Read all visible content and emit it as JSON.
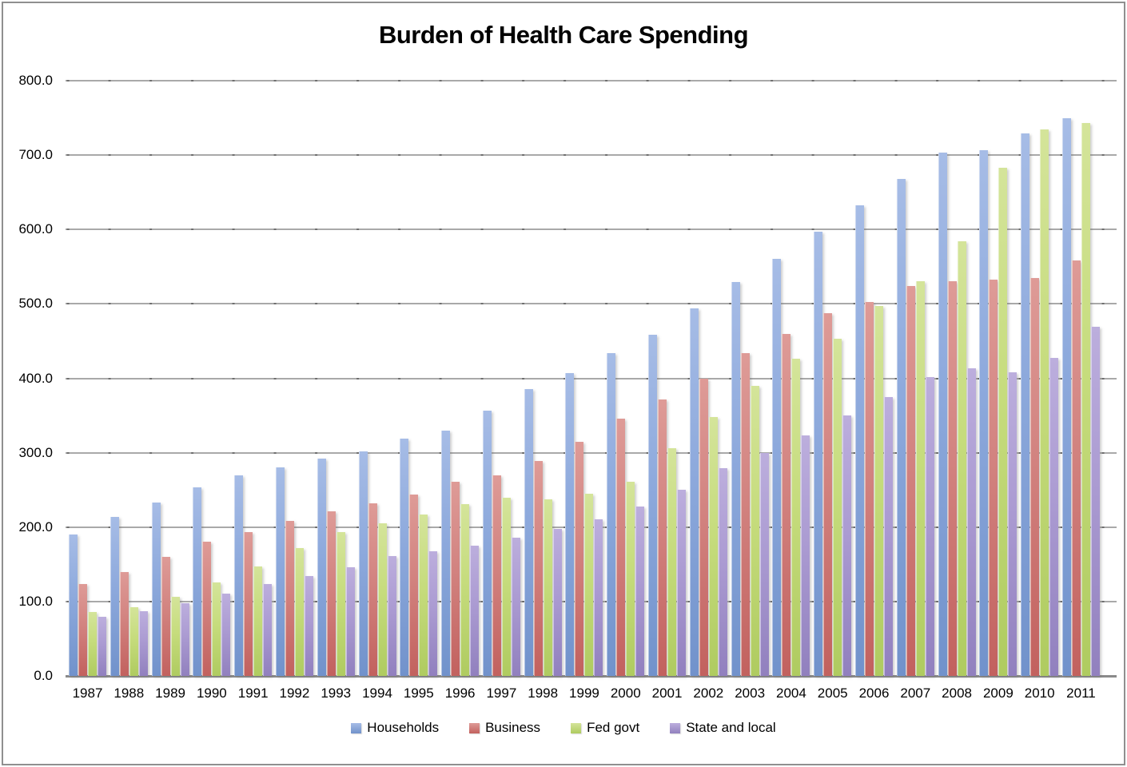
{
  "title": "Burden of Health Care Spending",
  "chart_data": {
    "type": "bar",
    "title": "Burden of Health Care Spending",
    "xlabel": "",
    "ylabel": "",
    "ylim": [
      0,
      800
    ],
    "ytick_step": 100,
    "ytick_labels": [
      "0.0",
      "100.0",
      "200.0",
      "300.0",
      "400.0",
      "500.0",
      "600.0",
      "700.0",
      "800.0"
    ],
    "grid": "horizontal gridlines on, dashed tick marks at category boundaries",
    "legend_position": "bottom",
    "categories": [
      1987,
      1988,
      1989,
      1990,
      1991,
      1992,
      1993,
      1994,
      1995,
      1996,
      1997,
      1998,
      1999,
      2000,
      2001,
      2002,
      2003,
      2004,
      2005,
      2006,
      2007,
      2008,
      2009,
      2010,
      2011
    ],
    "series": [
      {
        "name": "Households",
        "color": "#8da9dc",
        "color_top": "#a6bce6",
        "color_bottom": "#7192cb",
        "values": [
          190,
          214,
          233,
          253,
          269,
          280,
          292,
          302,
          319,
          330,
          356,
          385,
          407,
          434,
          458,
          494,
          529,
          561,
          597,
          633,
          668,
          703,
          707,
          729,
          749
        ]
      },
      {
        "name": "Business",
        "color": "#d28380",
        "color_top": "#de9b97",
        "color_bottom": "#c2615e",
        "values": [
          123,
          140,
          160,
          180,
          193,
          208,
          221,
          232,
          244,
          261,
          269,
          289,
          315,
          346,
          372,
          400,
          434,
          460,
          488,
          503,
          524,
          530,
          533,
          535,
          558
        ]
      },
      {
        "name": "Fed govt",
        "color": "#c6dc7d",
        "color_top": "#d4e49a",
        "color_bottom": "#afcb60",
        "values": [
          86,
          92,
          106,
          126,
          147,
          172,
          193,
          205,
          217,
          231,
          239,
          237,
          245,
          261,
          306,
          348,
          390,
          426,
          453,
          497,
          530,
          584,
          683,
          734,
          743
        ]
      },
      {
        "name": "State and local",
        "color": "#ab9bd2",
        "color_top": "#bcaedd",
        "color_bottom": "#9180be",
        "values": [
          79,
          87,
          98,
          111,
          124,
          134,
          146,
          161,
          168,
          175,
          186,
          198,
          211,
          228,
          250,
          279,
          300,
          323,
          350,
          375,
          402,
          413,
          408,
          427,
          469
        ]
      }
    ]
  }
}
